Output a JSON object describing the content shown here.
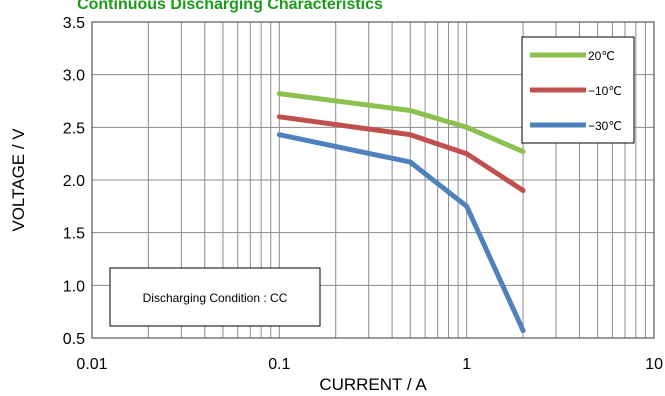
{
  "chart_data": {
    "type": "line",
    "title": "Continuous Discharging Characteristics",
    "xlabel": "CURRENT / A",
    "ylabel": "VOLTAGE / V",
    "xscale": "log",
    "xlim": [
      0.01,
      10
    ],
    "ylim": [
      0.5,
      3.5
    ],
    "xticks": [
      0.01,
      0.1,
      1,
      10
    ],
    "xtick_labels": [
      "0.01",
      "0.1",
      "1",
      "10"
    ],
    "yticks": [
      0.5,
      1.0,
      1.5,
      2.0,
      2.5,
      3.0,
      3.5
    ],
    "ytick_labels": [
      "0.5",
      "1.0",
      "1.5",
      "2.0",
      "2.5",
      "3.0",
      "3.5"
    ],
    "grid": true,
    "legend_position": "top-right",
    "annotation": "Discharging Condition : CC",
    "series": [
      {
        "name": "20℃",
        "color": "#8cc04f",
        "x": [
          0.1,
          0.5,
          1,
          2
        ],
        "y": [
          2.82,
          2.66,
          2.5,
          2.27
        ]
      },
      {
        "name": "−10℃",
        "color": "#c0504d",
        "x": [
          0.1,
          0.5,
          1,
          2
        ],
        "y": [
          2.6,
          2.43,
          2.25,
          1.9
        ]
      },
      {
        "name": "−30℃",
        "color": "#4f81bd",
        "x": [
          0.1,
          0.5,
          1,
          2
        ],
        "y": [
          2.43,
          2.17,
          1.75,
          0.57
        ]
      }
    ]
  }
}
